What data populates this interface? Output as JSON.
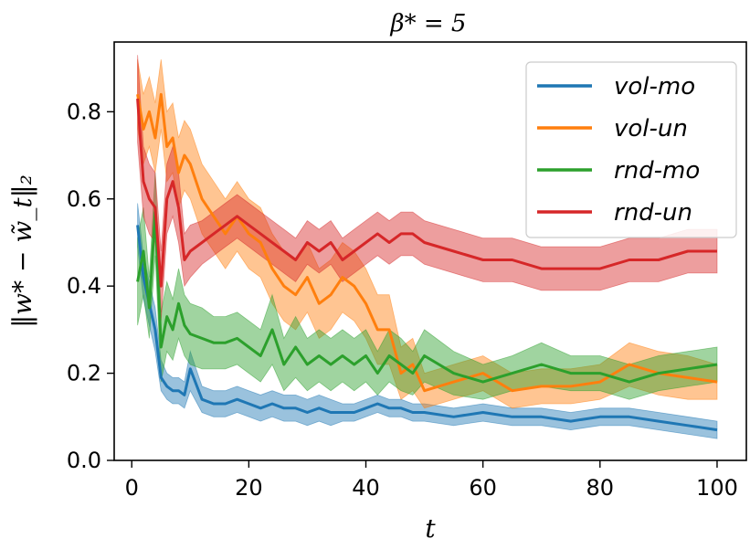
{
  "chart_data": {
    "type": "line",
    "title": "β* = 5",
    "xlabel": "t",
    "ylabel": "‖w* − w̃_t‖₂",
    "xlim": [
      -3,
      105
    ],
    "ylim": [
      0.0,
      0.96
    ],
    "xticks": [
      0,
      20,
      40,
      60,
      80,
      100
    ],
    "xtick_labels": [
      "0",
      "20",
      "40",
      "60",
      "80",
      "100"
    ],
    "yticks": [
      0.0,
      0.2,
      0.4,
      0.6,
      0.8
    ],
    "ytick_labels": [
      "0.0",
      "0.2",
      "0.4",
      "0.6",
      "0.8"
    ],
    "legend_position": "top-right",
    "x": [
      1,
      2,
      3,
      4,
      5,
      6,
      7,
      8,
      9,
      10,
      12,
      14,
      16,
      18,
      20,
      22,
      24,
      26,
      28,
      30,
      32,
      34,
      36,
      38,
      40,
      42,
      44,
      46,
      48,
      50,
      55,
      60,
      65,
      70,
      75,
      80,
      85,
      90,
      95,
      100
    ],
    "series": [
      {
        "name": "vol-mo",
        "color": "#1f77b4",
        "values": [
          0.54,
          0.42,
          0.36,
          0.3,
          0.19,
          0.17,
          0.16,
          0.16,
          0.15,
          0.21,
          0.14,
          0.13,
          0.13,
          0.14,
          0.13,
          0.12,
          0.13,
          0.12,
          0.12,
          0.11,
          0.12,
          0.11,
          0.11,
          0.11,
          0.12,
          0.13,
          0.12,
          0.12,
          0.11,
          0.11,
          0.1,
          0.11,
          0.1,
          0.1,
          0.09,
          0.1,
          0.1,
          0.09,
          0.08,
          0.07
        ],
        "lower": [
          0.49,
          0.37,
          0.31,
          0.25,
          0.16,
          0.14,
          0.13,
          0.13,
          0.12,
          0.16,
          0.11,
          0.1,
          0.1,
          0.11,
          0.1,
          0.09,
          0.1,
          0.09,
          0.09,
          0.08,
          0.09,
          0.08,
          0.09,
          0.09,
          0.1,
          0.11,
          0.1,
          0.1,
          0.09,
          0.09,
          0.08,
          0.09,
          0.08,
          0.08,
          0.07,
          0.08,
          0.08,
          0.07,
          0.06,
          0.05
        ],
        "upper": [
          0.59,
          0.47,
          0.41,
          0.35,
          0.23,
          0.2,
          0.19,
          0.19,
          0.18,
          0.25,
          0.17,
          0.16,
          0.16,
          0.17,
          0.16,
          0.15,
          0.16,
          0.15,
          0.15,
          0.14,
          0.15,
          0.14,
          0.13,
          0.13,
          0.14,
          0.15,
          0.14,
          0.14,
          0.13,
          0.13,
          0.12,
          0.13,
          0.12,
          0.12,
          0.11,
          0.12,
          0.12,
          0.11,
          0.1,
          0.09
        ]
      },
      {
        "name": "vol-un",
        "color": "#ff7f0e",
        "values": [
          0.84,
          0.76,
          0.8,
          0.74,
          0.84,
          0.72,
          0.74,
          0.66,
          0.7,
          0.68,
          0.6,
          0.56,
          0.52,
          0.56,
          0.52,
          0.5,
          0.44,
          0.4,
          0.38,
          0.42,
          0.36,
          0.38,
          0.42,
          0.4,
          0.36,
          0.3,
          0.3,
          0.2,
          0.22,
          0.16,
          0.18,
          0.2,
          0.16,
          0.17,
          0.17,
          0.18,
          0.22,
          0.2,
          0.19,
          0.18
        ],
        "lower": [
          0.76,
          0.68,
          0.72,
          0.66,
          0.76,
          0.64,
          0.66,
          0.58,
          0.62,
          0.6,
          0.52,
          0.48,
          0.44,
          0.48,
          0.44,
          0.42,
          0.36,
          0.32,
          0.3,
          0.34,
          0.28,
          0.3,
          0.34,
          0.32,
          0.28,
          0.22,
          0.22,
          0.14,
          0.16,
          0.12,
          0.14,
          0.16,
          0.12,
          0.13,
          0.13,
          0.14,
          0.17,
          0.15,
          0.14,
          0.14
        ],
        "upper": [
          0.92,
          0.84,
          0.88,
          0.82,
          0.92,
          0.8,
          0.82,
          0.74,
          0.78,
          0.76,
          0.68,
          0.64,
          0.6,
          0.64,
          0.6,
          0.58,
          0.52,
          0.48,
          0.46,
          0.5,
          0.44,
          0.46,
          0.5,
          0.48,
          0.44,
          0.38,
          0.38,
          0.26,
          0.28,
          0.2,
          0.22,
          0.24,
          0.2,
          0.21,
          0.21,
          0.22,
          0.27,
          0.25,
          0.24,
          0.22
        ]
      },
      {
        "name": "rnd-mo",
        "color": "#2ca02c",
        "values": [
          0.41,
          0.48,
          0.35,
          0.57,
          0.26,
          0.33,
          0.3,
          0.36,
          0.31,
          0.29,
          0.28,
          0.27,
          0.27,
          0.28,
          0.26,
          0.24,
          0.3,
          0.22,
          0.26,
          0.22,
          0.24,
          0.22,
          0.24,
          0.22,
          0.24,
          0.2,
          0.24,
          0.22,
          0.2,
          0.24,
          0.2,
          0.18,
          0.2,
          0.22,
          0.2,
          0.2,
          0.18,
          0.2,
          0.21,
          0.22
        ],
        "lower": [
          0.31,
          0.38,
          0.28,
          0.47,
          0.18,
          0.25,
          0.23,
          0.28,
          0.24,
          0.22,
          0.21,
          0.21,
          0.21,
          0.22,
          0.2,
          0.18,
          0.22,
          0.16,
          0.19,
          0.16,
          0.18,
          0.16,
          0.18,
          0.16,
          0.18,
          0.15,
          0.18,
          0.16,
          0.15,
          0.18,
          0.15,
          0.14,
          0.16,
          0.17,
          0.16,
          0.16,
          0.14,
          0.16,
          0.17,
          0.18
        ],
        "upper": [
          0.51,
          0.58,
          0.42,
          0.66,
          0.34,
          0.41,
          0.37,
          0.44,
          0.38,
          0.36,
          0.35,
          0.33,
          0.33,
          0.34,
          0.32,
          0.3,
          0.38,
          0.28,
          0.33,
          0.28,
          0.3,
          0.28,
          0.3,
          0.28,
          0.3,
          0.25,
          0.3,
          0.28,
          0.25,
          0.3,
          0.25,
          0.22,
          0.24,
          0.27,
          0.24,
          0.24,
          0.22,
          0.24,
          0.25,
          0.26
        ]
      },
      {
        "name": "rnd-un",
        "color": "#d62728",
        "values": [
          0.83,
          0.64,
          0.6,
          0.58,
          0.4,
          0.6,
          0.64,
          0.58,
          0.46,
          0.48,
          0.5,
          0.52,
          0.54,
          0.56,
          0.54,
          0.52,
          0.5,
          0.48,
          0.46,
          0.5,
          0.48,
          0.5,
          0.46,
          0.48,
          0.5,
          0.52,
          0.5,
          0.52,
          0.52,
          0.5,
          0.48,
          0.46,
          0.46,
          0.44,
          0.44,
          0.44,
          0.46,
          0.46,
          0.48,
          0.48
        ],
        "lower": [
          0.73,
          0.56,
          0.52,
          0.5,
          0.32,
          0.52,
          0.56,
          0.5,
          0.4,
          0.42,
          0.45,
          0.47,
          0.49,
          0.51,
          0.49,
          0.47,
          0.45,
          0.43,
          0.41,
          0.45,
          0.43,
          0.45,
          0.41,
          0.43,
          0.45,
          0.47,
          0.45,
          0.47,
          0.47,
          0.45,
          0.43,
          0.41,
          0.41,
          0.39,
          0.39,
          0.39,
          0.41,
          0.41,
          0.43,
          0.43
        ],
        "upper": [
          0.93,
          0.72,
          0.68,
          0.66,
          0.48,
          0.68,
          0.72,
          0.66,
          0.52,
          0.54,
          0.55,
          0.57,
          0.59,
          0.61,
          0.59,
          0.57,
          0.55,
          0.53,
          0.51,
          0.55,
          0.53,
          0.55,
          0.51,
          0.53,
          0.55,
          0.57,
          0.55,
          0.57,
          0.57,
          0.55,
          0.53,
          0.51,
          0.51,
          0.49,
          0.49,
          0.49,
          0.51,
          0.51,
          0.53,
          0.53
        ]
      }
    ]
  }
}
